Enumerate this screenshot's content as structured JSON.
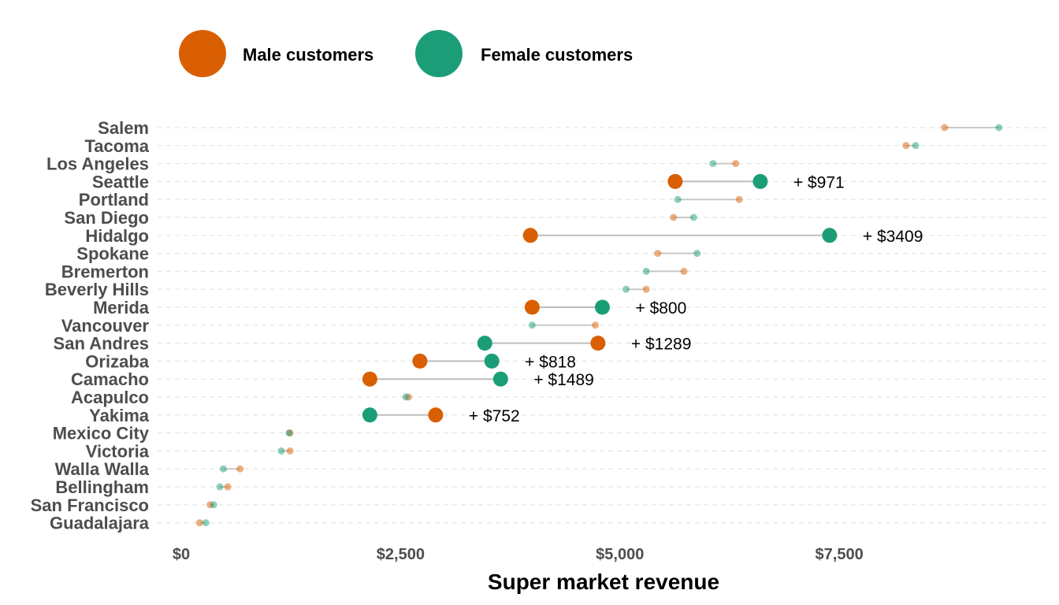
{
  "chart_data": {
    "type": "dumbbell",
    "xlabel": "Super market revenue",
    "xlim": [
      0,
      9800
    ],
    "x_ticks": [
      0,
      2500,
      5000,
      7500
    ],
    "x_tick_labels": [
      "$0",
      "$2,500",
      "$5,000",
      "$7,500"
    ],
    "grid": "horizontal dashed",
    "legend_position": "top-left",
    "legend": [
      {
        "key": "male",
        "label": "Male customers",
        "color": "#d95f02"
      },
      {
        "key": "female",
        "label": "Female customers",
        "color": "#1b9e77"
      }
    ],
    "cities": [
      {
        "city": "Salem",
        "male": 8700,
        "female": 9320,
        "highlight": false,
        "diff_label": ""
      },
      {
        "city": "Tacoma",
        "male": 8260,
        "female": 8370,
        "highlight": false,
        "diff_label": ""
      },
      {
        "city": "Los Angeles",
        "male": 6320,
        "female": 6060,
        "highlight": false,
        "diff_label": ""
      },
      {
        "city": "Seattle",
        "male": 5630,
        "female": 6600,
        "highlight": true,
        "diff_label": "+ $971"
      },
      {
        "city": "Portland",
        "male": 6360,
        "female": 5660,
        "highlight": false,
        "diff_label": ""
      },
      {
        "city": "San Diego",
        "male": 5610,
        "female": 5840,
        "highlight": false,
        "diff_label": ""
      },
      {
        "city": "Hidalgo",
        "male": 3980,
        "female": 7390,
        "highlight": true,
        "diff_label": "+ $3409"
      },
      {
        "city": "Spokane",
        "male": 5430,
        "female": 5880,
        "highlight": false,
        "diff_label": ""
      },
      {
        "city": "Bremerton",
        "male": 5730,
        "female": 5300,
        "highlight": false,
        "diff_label": ""
      },
      {
        "city": "Beverly Hills",
        "male": 5300,
        "female": 5070,
        "highlight": false,
        "diff_label": ""
      },
      {
        "city": "Merida",
        "male": 4000,
        "female": 4800,
        "highlight": true,
        "diff_label": "+ $800"
      },
      {
        "city": "Vancouver",
        "male": 4720,
        "female": 4000,
        "highlight": false,
        "diff_label": ""
      },
      {
        "city": "San Andres",
        "male": 4750,
        "female": 3460,
        "highlight": true,
        "diff_label": "+ $1289"
      },
      {
        "city": "Orizaba",
        "male": 2720,
        "female": 3540,
        "highlight": true,
        "diff_label": "+ $818"
      },
      {
        "city": "Camacho",
        "male": 2150,
        "female": 3640,
        "highlight": true,
        "diff_label": "+ $1489"
      },
      {
        "city": "Acapulco",
        "male": 2590,
        "female": 2560,
        "highlight": false,
        "diff_label": ""
      },
      {
        "city": "Yakima",
        "male": 2900,
        "female": 2150,
        "highlight": true,
        "diff_label": "+ $752"
      },
      {
        "city": "Mexico City",
        "male": 1240,
        "female": 1230,
        "highlight": false,
        "diff_label": ""
      },
      {
        "city": "Victoria",
        "male": 1240,
        "female": 1140,
        "highlight": false,
        "diff_label": ""
      },
      {
        "city": "Walla Walla",
        "male": 670,
        "female": 480,
        "highlight": false,
        "diff_label": ""
      },
      {
        "city": "Bellingham",
        "male": 530,
        "female": 440,
        "highlight": false,
        "diff_label": ""
      },
      {
        "city": "San Francisco",
        "male": 330,
        "female": 370,
        "highlight": false,
        "diff_label": ""
      },
      {
        "city": "Guadalajara",
        "male": 210,
        "female": 280,
        "highlight": false,
        "diff_label": ""
      }
    ]
  }
}
